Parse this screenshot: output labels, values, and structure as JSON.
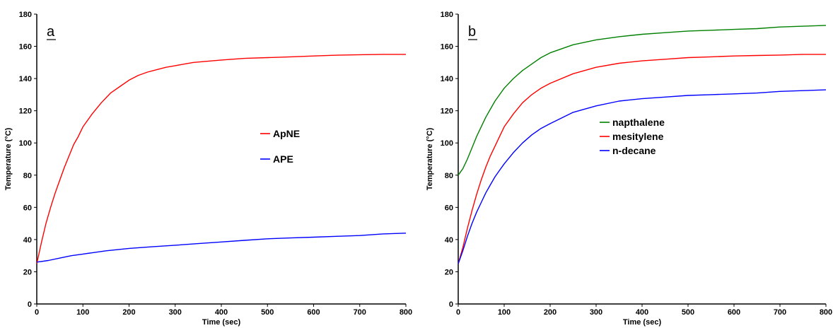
{
  "chart_data": [
    {
      "type": "line",
      "panel_label": "a",
      "xlabel": "Time (sec)",
      "ylabel": "Temperature (°C)",
      "xlim": [
        0,
        800
      ],
      "ylim": [
        0,
        180
      ],
      "xticks": [
        0,
        100,
        200,
        300,
        400,
        500,
        600,
        700,
        800
      ],
      "yticks": [
        0,
        20,
        40,
        60,
        80,
        100,
        120,
        140,
        160,
        180
      ],
      "grid": false,
      "legend_position": "center-right",
      "series": [
        {
          "name": "ApNE",
          "color": "#ff0000",
          "x": [
            0,
            10,
            20,
            30,
            40,
            50,
            60,
            70,
            80,
            90,
            100,
            120,
            140,
            160,
            180,
            200,
            220,
            240,
            260,
            280,
            300,
            320,
            340,
            360,
            380,
            400,
            450,
            500,
            550,
            600,
            650,
            700,
            750,
            800
          ],
          "y": [
            25,
            38,
            50,
            60,
            69,
            77,
            85,
            92,
            99,
            104,
            110,
            118,
            125,
            131,
            135,
            139,
            142,
            144,
            145.5,
            147,
            148,
            149,
            150,
            150.5,
            151,
            151.5,
            152.5,
            153,
            153.5,
            154,
            154.5,
            154.8,
            155,
            155
          ]
        },
        {
          "name": "APE",
          "color": "#0000ff",
          "x": [
            0,
            25,
            50,
            75,
            100,
            150,
            200,
            250,
            300,
            350,
            400,
            450,
            500,
            550,
            600,
            650,
            700,
            750,
            800
          ],
          "y": [
            26,
            27,
            28.5,
            30,
            31,
            33,
            34.5,
            35.5,
            36.5,
            37.5,
            38.5,
            39.5,
            40.5,
            41,
            41.5,
            42,
            42.5,
            43.5,
            44
          ]
        }
      ]
    },
    {
      "type": "line",
      "panel_label": "b",
      "xlabel": "Time (sec)",
      "ylabel": "Temperature (°C)",
      "xlim": [
        0,
        800
      ],
      "ylim": [
        0,
        180
      ],
      "xticks": [
        0,
        100,
        200,
        300,
        400,
        500,
        600,
        700,
        800
      ],
      "yticks": [
        0,
        20,
        40,
        60,
        80,
        100,
        120,
        140,
        160,
        180
      ],
      "grid": false,
      "legend_position": "center-right",
      "series": [
        {
          "name": "napthalene",
          "color": "#008000",
          "x": [
            0,
            10,
            20,
            30,
            40,
            50,
            60,
            70,
            80,
            90,
            100,
            120,
            140,
            160,
            180,
            200,
            250,
            300,
            350,
            400,
            450,
            500,
            550,
            600,
            650,
            700,
            750,
            800
          ],
          "y": [
            80,
            84,
            90,
            97,
            104,
            110,
            116,
            121,
            126,
            130,
            134,
            140,
            145,
            149,
            153,
            156,
            161,
            164,
            166,
            167.5,
            168.5,
            169.5,
            170,
            170.5,
            171,
            172,
            172.5,
            173
          ]
        },
        {
          "name": "mesitylene",
          "color": "#ff0000",
          "x": [
            0,
            10,
            20,
            30,
            40,
            50,
            60,
            70,
            80,
            90,
            100,
            120,
            140,
            160,
            180,
            200,
            250,
            300,
            350,
            400,
            450,
            500,
            550,
            600,
            650,
            700,
            750,
            800
          ],
          "y": [
            25,
            35,
            47,
            58,
            68,
            77,
            85,
            92,
            98,
            104,
            110,
            118,
            125,
            130,
            134,
            137,
            143,
            147,
            149.5,
            151,
            152,
            153,
            153.5,
            154,
            154.3,
            154.6,
            155,
            155
          ]
        },
        {
          "name": "n-decane",
          "color": "#0000ff",
          "x": [
            0,
            10,
            20,
            30,
            40,
            50,
            60,
            70,
            80,
            90,
            100,
            120,
            140,
            160,
            180,
            200,
            250,
            300,
            350,
            400,
            450,
            500,
            550,
            600,
            650,
            700,
            750,
            800
          ],
          "y": [
            25,
            33,
            42,
            50,
            57,
            63,
            69,
            74,
            79,
            83,
            87,
            94,
            100,
            105,
            109,
            112,
            119,
            123,
            126,
            127.5,
            128.5,
            129.5,
            130,
            130.5,
            131,
            132,
            132.5,
            133
          ]
        }
      ]
    }
  ]
}
